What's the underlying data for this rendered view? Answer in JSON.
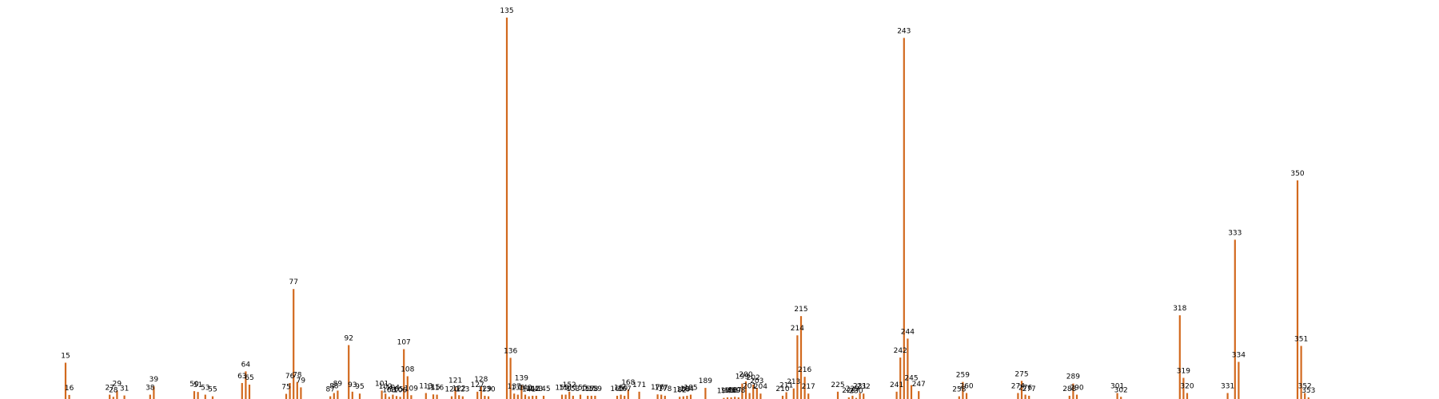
{
  "chart_data": {
    "type": "bar",
    "bar_color": "#d2691e",
    "background": "#ffffff",
    "grid": false,
    "axes_visible": false,
    "title": "",
    "xlabel": "",
    "ylabel": "",
    "ylim": [
      0,
      142
    ],
    "categories": [
      15,
      16,
      27,
      28,
      29,
      31,
      38,
      39,
      50,
      51,
      53,
      55,
      63,
      64,
      65,
      75,
      76,
      77,
      78,
      79,
      87,
      88,
      89,
      92,
      93,
      95,
      101,
      102,
      103,
      104,
      105,
      106,
      107,
      108,
      109,
      113,
      115,
      116,
      120,
      121,
      122,
      123,
      127,
      128,
      129,
      130,
      135,
      136,
      137,
      138,
      139,
      140,
      141,
      142,
      143,
      145,
      150,
      151,
      152,
      153,
      155,
      157,
      158,
      159,
      165,
      166,
      167,
      168,
      171,
      176,
      177,
      178,
      182,
      183,
      184,
      185,
      189,
      194,
      195,
      196,
      197,
      198,
      199,
      200,
      201,
      202,
      203,
      204,
      210,
      211,
      213,
      214,
      215,
      216,
      217,
      225,
      228,
      229,
      230,
      231,
      232,
      241,
      242,
      243,
      244,
      245,
      247,
      258,
      259,
      260,
      274,
      275,
      276,
      277,
      288,
      289,
      290,
      301,
      302,
      318,
      319,
      320,
      331,
      333,
      334,
      350,
      351,
      352,
      353
    ],
    "values": [
      13.4,
      1.5,
      1.6,
      0.8,
      3.1,
      1.3,
      1.6,
      4.7,
      2.9,
      2.6,
      1.6,
      1.0,
      5.9,
      10.2,
      5.3,
      1.9,
      5.9,
      40.6,
      6.3,
      4.3,
      1.0,
      2.2,
      3.1,
      19.9,
      2.7,
      2.0,
      3.1,
      2.0,
      0.8,
      1.6,
      1.1,
      0.8,
      18.4,
      8.4,
      1.4,
      2.2,
      1.7,
      1.6,
      1.0,
      4.3,
      1.4,
      1.0,
      2.7,
      4.7,
      1.2,
      1.0,
      140.8,
      15.2,
      2.0,
      1.6,
      5.1,
      1.6,
      1.0,
      1.2,
      1.2,
      1.2,
      1.6,
      1.6,
      2.7,
      1.2,
      1.6,
      1.2,
      1.2,
      1.2,
      1.2,
      1.6,
      1.2,
      3.5,
      2.7,
      1.7,
      1.6,
      1.2,
      0.8,
      1.0,
      1.2,
      1.6,
      4.1,
      0.4,
      0.6,
      0.6,
      0.8,
      0.6,
      5.7,
      6.5,
      2.2,
      5.3,
      4.1,
      2.0,
      1.2,
      2.5,
      3.9,
      23.5,
      30.6,
      8.2,
      2.0,
      2.7,
      0.6,
      1.2,
      0.4,
      2.2,
      2.0,
      2.7,
      15.3,
      133.3,
      22.3,
      5.1,
      2.9,
      1.0,
      6.3,
      2.2,
      2.2,
      6.7,
      1.6,
      1.2,
      1.2,
      5.7,
      1.6,
      2.2,
      0.8,
      30.9,
      7.8,
      2.2,
      2.2,
      58.8,
      13.7,
      80.7,
      19.6,
      2.2,
      0.6
    ]
  }
}
